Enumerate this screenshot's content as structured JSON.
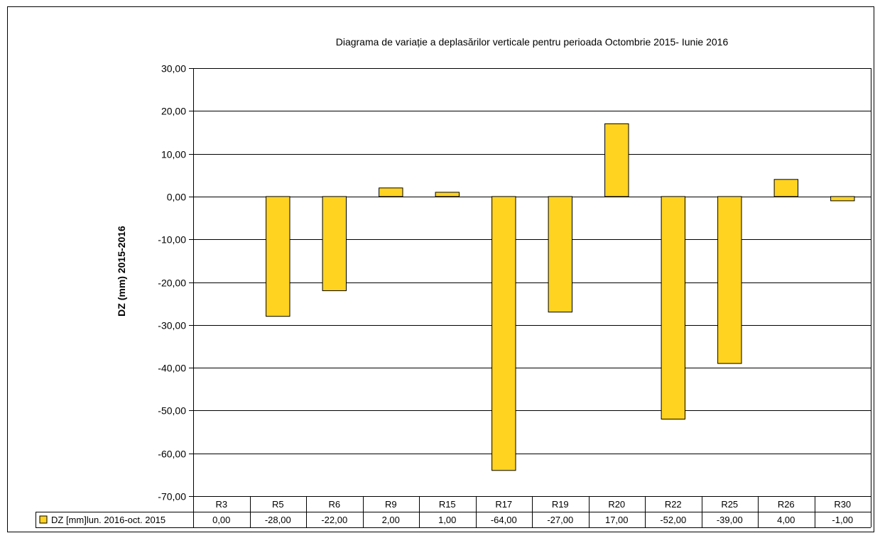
{
  "chart_data": {
    "type": "bar",
    "title": "Diagrama de variație a deplasărilor verticale pentru perioada Octombrie 2015- Iunie 2016",
    "ylabel": "DZ (mm) 2015-2016",
    "xlabel": "",
    "ylim": [
      -70,
      30
    ],
    "yticks": [
      30,
      20,
      10,
      0,
      -10,
      -20,
      -30,
      -40,
      -50,
      -60,
      -70
    ],
    "ytick_labels": [
      "30,00",
      "20,00",
      "10,00",
      "0,00",
      "-10,00",
      "-20,00",
      "-30,00",
      "-40,00",
      "-50,00",
      "-60,00",
      "-70,00"
    ],
    "grid": true,
    "categories": [
      "R3",
      "R5",
      "R6",
      "R9",
      "R15",
      "R17",
      "R19",
      "R20",
      "R22",
      "R25",
      "R26",
      "R30"
    ],
    "series": [
      {
        "name": "DZ  [mm]lun. 2016-oct. 2015",
        "values": [
          0,
          -28,
          -22,
          2,
          1,
          -64,
          -27,
          17,
          -52,
          -39,
          4,
          -1
        ],
        "value_labels": [
          "0,00",
          "-28,00",
          "-22,00",
          "2,00",
          "1,00",
          "-64,00",
          "-27,00",
          "17,00",
          "-52,00",
          "-39,00",
          "4,00",
          "-1,00"
        ],
        "color": "#FFD320"
      }
    ],
    "legend_position": "data-table-left"
  }
}
